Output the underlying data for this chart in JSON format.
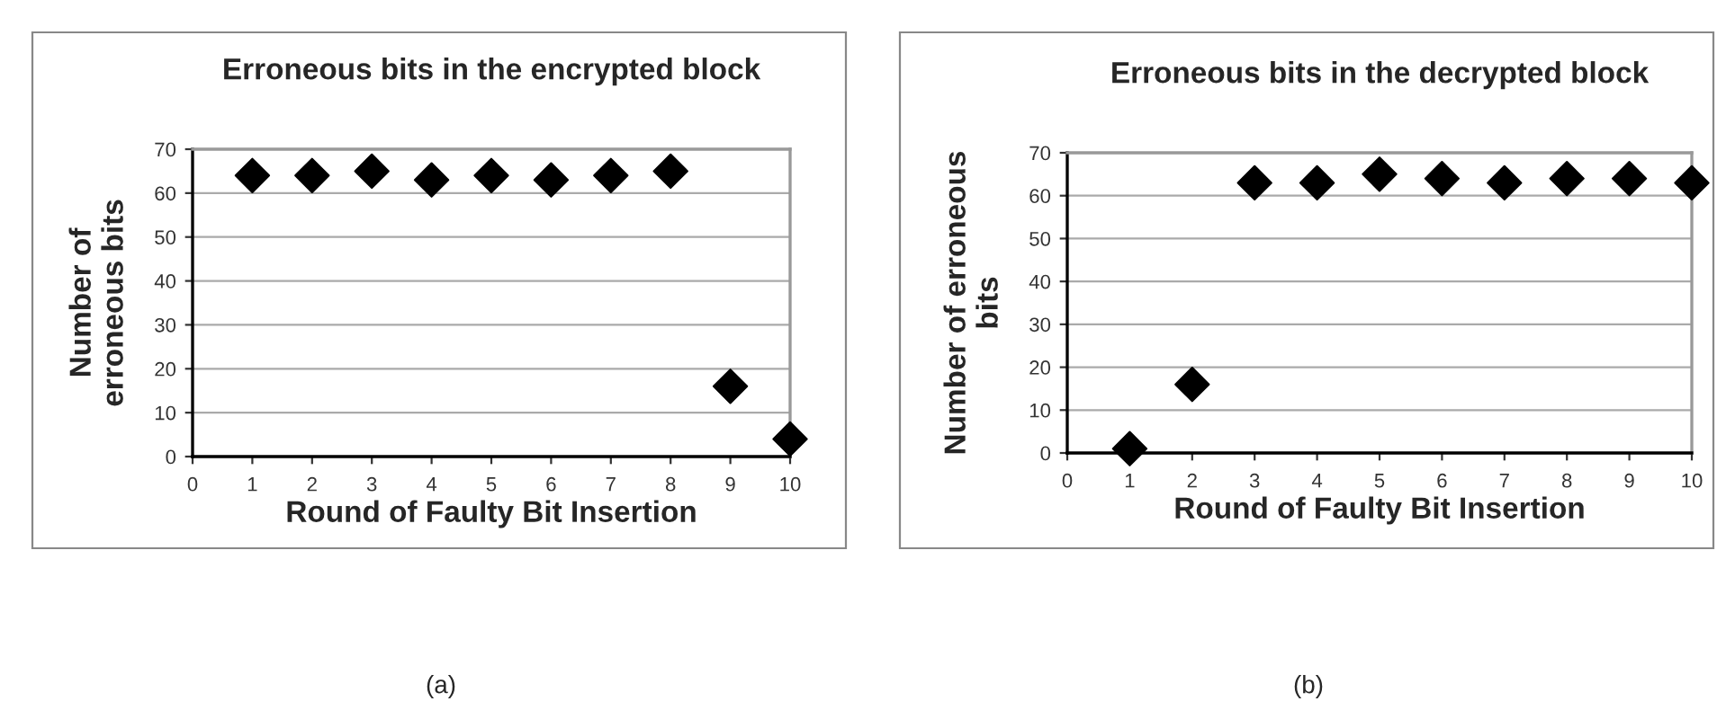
{
  "chart_data": [
    {
      "type": "scatter",
      "title": "Erroneous bits in the encrypted block",
      "xlabel": "Round of Faulty Bit Insertion",
      "ylabel": "Number of\nerroneous bits",
      "x": [
        1,
        2,
        3,
        4,
        5,
        6,
        7,
        8,
        9,
        10
      ],
      "series": [
        {
          "color": "#000000",
          "values": [
            64,
            64,
            65,
            63,
            64,
            63,
            64,
            65,
            16,
            4
          ]
        }
      ],
      "xlim": [
        0,
        10
      ],
      "xticks": [
        0,
        1,
        2,
        3,
        4,
        5,
        6,
        7,
        8,
        9,
        10
      ],
      "ylim": [
        0,
        70
      ],
      "yticks": [
        0,
        10,
        20,
        30,
        40,
        50,
        60,
        70
      ],
      "grid": "y",
      "marker": "diamond",
      "annotations": [
        "(a)"
      ]
    },
    {
      "type": "scatter",
      "title": "Erroneous bits in the decrypted block",
      "xlabel": "Round of Faulty Bit Insertion",
      "ylabel": "Number of erroneous\nbits",
      "x": [
        1,
        2,
        3,
        4,
        5,
        6,
        7,
        8,
        9,
        10
      ],
      "series": [
        {
          "color": "#000000",
          "values": [
            1,
            16,
            63,
            63,
            65,
            64,
            63,
            64,
            64,
            63
          ]
        }
      ],
      "xlim": [
        0,
        10
      ],
      "xticks": [
        0,
        1,
        2,
        3,
        4,
        5,
        6,
        7,
        8,
        9,
        10
      ],
      "ylim": [
        0,
        70
      ],
      "yticks": [
        0,
        10,
        20,
        30,
        40,
        50,
        60,
        70
      ],
      "grid": "y",
      "marker": "diamond",
      "annotations": [
        "(b)"
      ]
    }
  ]
}
